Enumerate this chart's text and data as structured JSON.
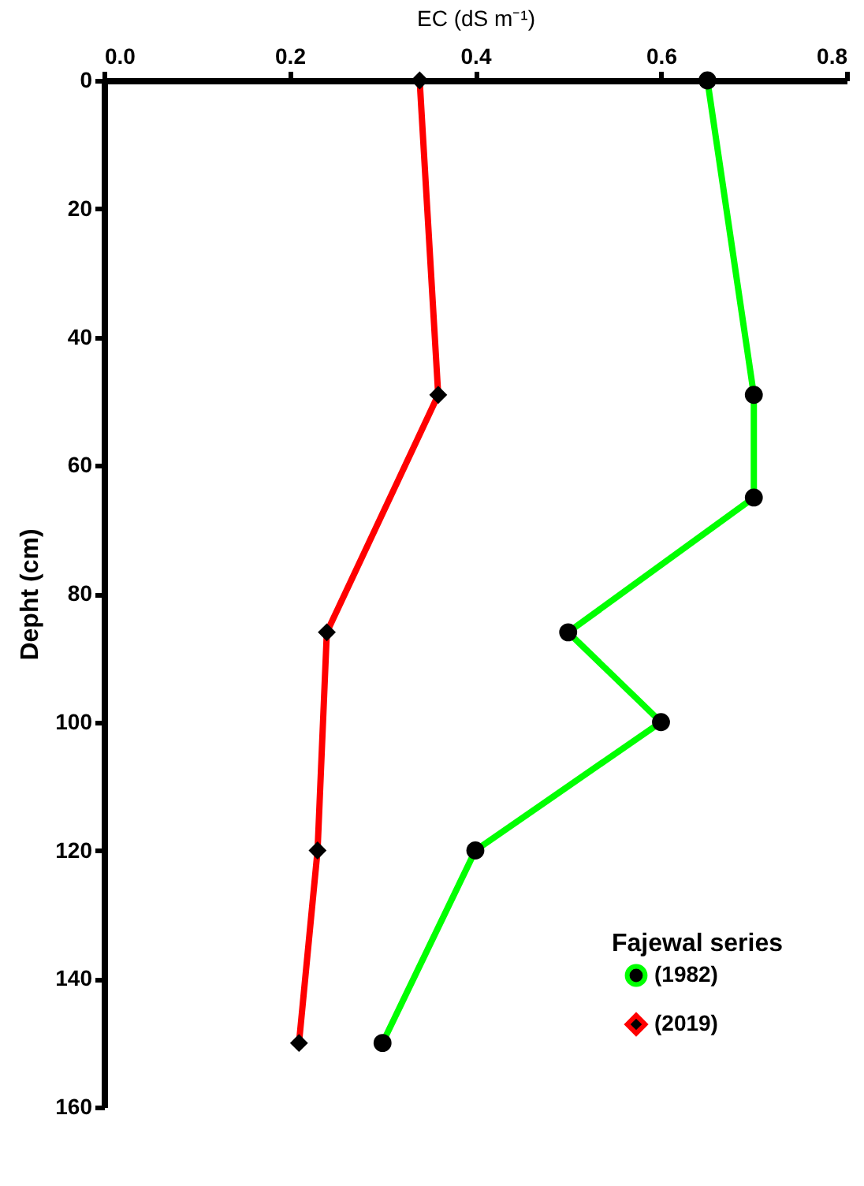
{
  "chart_data": {
    "type": "line",
    "xlabel": "EC (dS m⁻¹)",
    "ylabel": "Depht (cm)",
    "legend_title": "Fajewal series",
    "xlim": [
      0,
      0.8
    ],
    "xticks": [
      {
        "value": 0,
        "label": "0.0"
      },
      {
        "value": 0.2,
        "label": "0.2"
      },
      {
        "value": 0.4,
        "label": "0.4"
      },
      {
        "value": 0.6,
        "label": "0.6"
      },
      {
        "value": 0.8,
        "label": "0.8"
      }
    ],
    "ylim": [
      160,
      0
    ],
    "yticks": [
      0,
      20,
      40,
      60,
      80,
      100,
      120,
      140,
      160
    ],
    "grid": false,
    "legend": "bottom right",
    "series": [
      {
        "name": "(1982)",
        "color": "#00ff00",
        "marker": "circle",
        "x": [
          0.65,
          0.7,
          0.7,
          0.5,
          0.6,
          0.4,
          0.3
        ],
        "values": [
          0,
          49,
          65,
          86,
          100,
          120,
          150
        ]
      },
      {
        "name": "(2019)",
        "color": "#ff0000",
        "marker": "diamond",
        "x": [
          0.34,
          0.36,
          0.24,
          0.23,
          0.21
        ],
        "values": [
          0,
          49,
          86,
          120,
          150
        ]
      }
    ]
  }
}
